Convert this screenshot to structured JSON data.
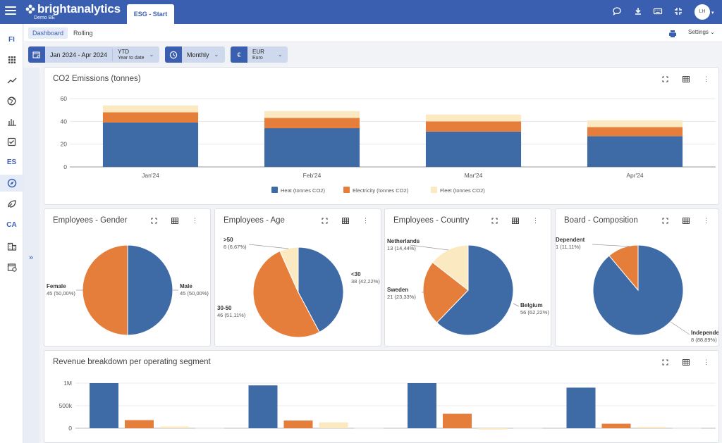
{
  "app": {
    "brand": "brightanalytics",
    "workspace": "Demo BE",
    "active_tab": "ESG - Start",
    "user_initials": "LH"
  },
  "sidebar": {
    "items": [
      {
        "label": "FI",
        "icon": "text"
      },
      {
        "label": "",
        "icon": "grid-icon"
      },
      {
        "label": "",
        "icon": "trend-icon"
      },
      {
        "label": "",
        "icon": "globe-icon"
      },
      {
        "label": "",
        "icon": "chart-hand-icon"
      },
      {
        "label": "",
        "icon": "checklist-icon"
      },
      {
        "label": "ES",
        "icon": "text"
      },
      {
        "label": "",
        "icon": "compass-icon"
      },
      {
        "label": "",
        "icon": "leaf-icon"
      },
      {
        "label": "CA",
        "icon": "text"
      },
      {
        "label": "",
        "icon": "building-icon"
      },
      {
        "label": "",
        "icon": "calendar-clock-icon"
      }
    ],
    "expand_glyph": "»"
  },
  "subnav": {
    "tabs": [
      "Dashboard",
      "Rolling"
    ],
    "active": "Dashboard",
    "settings_label": "Settings"
  },
  "filters": {
    "period": "Jan 2024 - Apr 2024",
    "period_mode": "YTD",
    "period_mode_sub": "Year to date",
    "frequency": "Monthly",
    "currency_symbol": "€",
    "currency": "EUR",
    "currency_sub": "Euro"
  },
  "colors": {
    "primary": "#3a5fb0",
    "series_blue": "#3e6aa5",
    "series_orange": "#e57e3a",
    "series_cream": "#fbeac1",
    "series_gray": "#e4e6ea"
  },
  "cards": {
    "co2_title": "CO2 Emissions (tonnes)",
    "gender_title": "Employees - Gender",
    "age_title": "Employees - Age",
    "country_title": "Employees - Country",
    "board_title": "Board - Composition",
    "revenue_title": "Revenue breakdown per operating segment"
  },
  "chart_data": [
    {
      "type": "bar",
      "stacked": true,
      "title": "CO2 Emissions (tonnes)",
      "categories": [
        "Jan'24",
        "Feb'24",
        "Mar'24",
        "Apr'24"
      ],
      "series": [
        {
          "name": "Heat (tonnes CO2)",
          "values": [
            39,
            34,
            31,
            27
          ],
          "color": "#3e6aa5"
        },
        {
          "name": "Electricity (tonnes CO2)",
          "values": [
            9,
            9,
            9,
            8
          ],
          "color": "#e57e3a"
        },
        {
          "name": "Fleet (tonnes CO2)",
          "values": [
            6,
            6,
            6,
            6
          ],
          "color": "#fbeac1"
        }
      ],
      "ylim": [
        0,
        60
      ],
      "yticks": [
        "0",
        "20",
        "40",
        "60"
      ],
      "legend": "bottom",
      "grid": true
    },
    {
      "type": "pie",
      "title": "Employees - Gender",
      "slices": [
        {
          "label": "Male",
          "value": 45,
          "pct": "45 (50,00%)",
          "color": "#3e6aa5"
        },
        {
          "label": "Female",
          "value": 45,
          "pct": "45 (50,00%)",
          "color": "#e57e3a"
        }
      ]
    },
    {
      "type": "pie",
      "title": "Employees - Age",
      "slices": [
        {
          "label": "<30",
          "value": 38,
          "pct": "38 (42,22%)",
          "color": "#3e6aa5"
        },
        {
          "label": "30-50",
          "value": 46,
          "pct": "46 (51,11%)",
          "color": "#e57e3a"
        },
        {
          "label": ">50",
          "value": 6,
          "pct": "6 (6,67%)",
          "color": "#fbeac1"
        }
      ]
    },
    {
      "type": "pie",
      "title": "Employees - Country",
      "slices": [
        {
          "label": "Belgium",
          "value": 56,
          "pct": "56 (62,22%)",
          "color": "#3e6aa5"
        },
        {
          "label": "Sweden",
          "value": 21,
          "pct": "21 (23,33%)",
          "color": "#e57e3a"
        },
        {
          "label": "Netherlands",
          "value": 13,
          "pct": "13 (14,44%)",
          "color": "#fbeac1"
        }
      ]
    },
    {
      "type": "pie",
      "title": "Board - Composition",
      "slices": [
        {
          "label": "Independent",
          "value": 8,
          "pct": "8 (88,89%)",
          "color": "#3e6aa5"
        },
        {
          "label": "Dependent",
          "value": 1,
          "pct": "1 (11,11%)",
          "color": "#e57e3a"
        }
      ]
    },
    {
      "type": "bar",
      "title": "Revenue breakdown per operating segment",
      "groups": 4,
      "series": [
        {
          "values": [
            1000000,
            950000,
            1000000,
            900000
          ],
          "color": "#3e6aa5"
        },
        {
          "values": [
            180000,
            170000,
            320000,
            100000
          ],
          "color": "#e57e3a"
        },
        {
          "values": [
            40000,
            130000,
            -30000,
            30000
          ],
          "color": "#fbeac1"
        },
        {
          "values": [
            5000,
            5000,
            5000,
            5000
          ],
          "color": "#e4e6ea"
        }
      ],
      "yticks": [
        "0",
        "500k",
        "1M"
      ],
      "ylim": [
        -100000,
        1100000
      ]
    }
  ]
}
